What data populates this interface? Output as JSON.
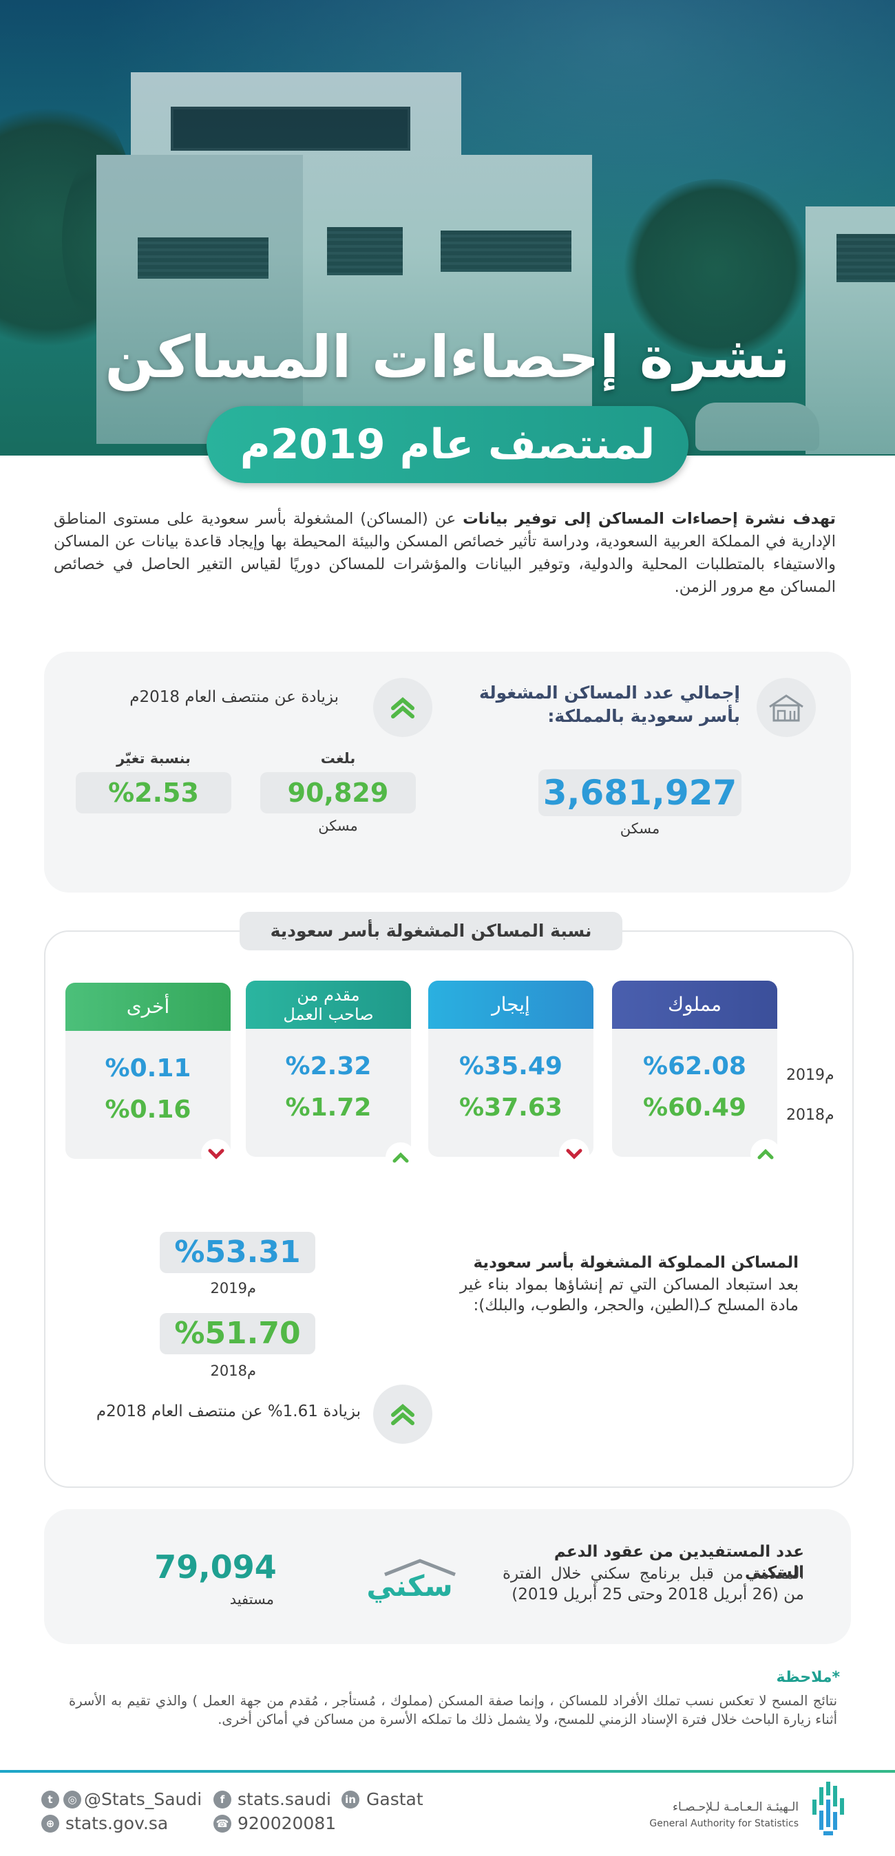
{
  "hero": {
    "title": "نشرة إحصاءات المساكن",
    "subtitle": "لمنتصف عام 2019م"
  },
  "intro": {
    "bold_lead": "تهدف نشرة إحصاءات المساكن إلى توفير بيانات",
    "text": " عن (المساكن) المشغولة بأسر سعودية على مستوى المناطق الإدارية في المملكة العربية السعودية، ودراسة تأثير خصائص المسكن والبيئة المحيطة بها وإيجاد قاعدة بيانات عن المساكن والاستيفاء بالمتطلبات المحلية والدولية، وتوفير البيانات والمؤشرات للمساكن دوريًا لقياس التغير الحاصل في خصائص المساكن مع مرور الزمن."
  },
  "total_card": {
    "title_line1": "إجمالي عدد المساكن المشغولة",
    "title_line2": "بأسر سعودية بالمملكة:",
    "total_value": "3,681,927",
    "total_unit": "مسكن",
    "increase_label": "بزيادة عن منتصف العام 2018م",
    "reached_label": "بلغت",
    "reached_value": "90,829",
    "reached_unit": "مسكن",
    "change_label": "بنسبة تغيّر",
    "change_value": "%2.53",
    "icon": "house-icon"
  },
  "share_section": {
    "header": "نسبة المساكن المشغولة بأسر سعودية",
    "row_labels": [
      "2019م",
      "2018م"
    ],
    "columns": [
      {
        "label": "مملوك",
        "v2019": "%62.08",
        "v2018": "%60.49",
        "trend": "up",
        "color": "#4a5fae"
      },
      {
        "label": "إيجار",
        "v2019": "%35.49",
        "v2018": "%37.63",
        "trend": "down",
        "color": "#2b9bd8"
      },
      {
        "label_line1": "مقدم من",
        "label_line2": "صاحب العمل",
        "v2019": "%2.32",
        "v2018": "%1.72",
        "trend": "up",
        "color": "#26a89a"
      },
      {
        "label": "أخرى",
        "v2019": "%0.11",
        "v2018": "%0.16",
        "trend": "down",
        "color": "#3fb56a"
      }
    ],
    "owned_title": "المساكن المملوكة المشغولة بأسر سعودية",
    "owned_desc": "بعد استبعاد المساكن التي تم إنشاؤها بمواد بناء غير مادة المسلح كـ(الطين، والحجر، والطوب، والبلك):",
    "owned_2019_value": "%53.31",
    "owned_2019_label": "2019م",
    "owned_2018_value": "%51.70",
    "owned_2018_label": "2018م",
    "owned_increase": "بزيادة 1.61% عن منتصف العام 2018م"
  },
  "sakani_card": {
    "title": "عدد المستفيدين من عقود الدعم السكني",
    "desc": "المقدمة من قبل برنامج سكني خلال الفترة من (26 أبريل 2018 وحتى 25 أبريل 2019)",
    "logo_text": "سكني",
    "value": "79,094",
    "unit": "مستفيد"
  },
  "note": {
    "title": "*ملاحظة",
    "text": "نتائج المسح لا تعكس نسب تملك الأفراد للمساكن ، وإنما صفة المسكن (مملوك ، مُستأجر ، مُقدم من جهة العمل ) والذي تقيم به الأسرة أثناء زيارة الباحث خلال فترة الإسناد الزمني للمسح، ولا يشمل ذلك ما تملكه الأسرة من مساكن في أماكن أخرى."
  },
  "footer": {
    "twitter": "@Stats_Saudi",
    "facebook": "stats.saudi",
    "linkedin": "Gastat",
    "website": "stats.gov.sa",
    "phone": "920020081",
    "org_ar": "الـهيئـة الـعـامـة لـلإحـصـاء",
    "org_en": "General Authority for Statistics"
  },
  "colors": {
    "teal": "#1f9a8a",
    "blue": "#2c9ad8",
    "green": "#52b847",
    "up_arrow": "#52b847",
    "down_arrow": "#c8253b"
  }
}
